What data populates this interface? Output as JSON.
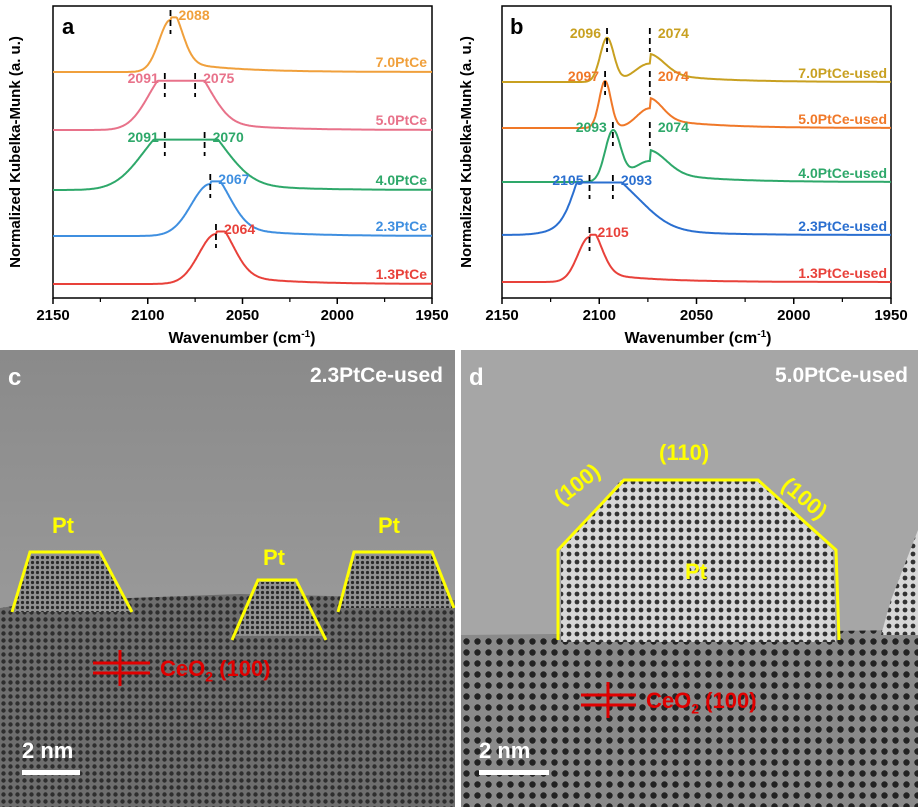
{
  "panels": {
    "a": {
      "letter": "a",
      "xlabel": "Wavenumber (cm",
      "xlabel_sup": "-1",
      "xlabel_end": ")",
      "ylabel": "Normalized Kubelka-Munk (a. u.)",
      "xticks": [
        "2150",
        "2100",
        "2050",
        "2000",
        "1950"
      ]
    },
    "b": {
      "letter": "b",
      "xlabel": "Wavenumber (cm",
      "xlabel_sup": "-1",
      "xlabel_end": ")",
      "ylabel": "Normalized Kubelka-Munk (a. u.)",
      "xticks": [
        "2150",
        "2100",
        "2050",
        "2000",
        "1950"
      ]
    },
    "c": {
      "letter": "c",
      "title": "2.3PtCe-used",
      "pt_labels": [
        "Pt",
        "Pt",
        "Pt"
      ],
      "ceo2_main": "CeO",
      "ceo2_sub": "2",
      "ceo2_facet": " (100)",
      "scale": "2 nm"
    },
    "d": {
      "letter": "d",
      "title": "5.0PtCe-used",
      "facet_top": "(110)",
      "facet_left": "(100)",
      "facet_right": "(100)",
      "pt_label": "Pt",
      "ceo2_main": "CeO",
      "ceo2_sub": "2",
      "ceo2_facet": " (100)",
      "scale": "2 nm"
    }
  },
  "chart_data": [
    {
      "type": "line",
      "panel": "a",
      "xlabel": "Wavenumber (cm-1)",
      "ylabel": "Normalized Kubelka-Munk (a. u.)",
      "xlim": [
        2150,
        1950
      ],
      "xticks": [
        2150,
        2100,
        2050,
        2000,
        1950
      ],
      "series": [
        {
          "name": "7.0PtCe",
          "color": "#f0a03c",
          "peaks": [
            2088
          ]
        },
        {
          "name": "5.0PtCe",
          "color": "#e8728a",
          "peaks": [
            2091,
            2075
          ]
        },
        {
          "name": "4.0PtCe",
          "color": "#2ea86a",
          "peaks": [
            2091,
            2070
          ]
        },
        {
          "name": "2.3PtCe",
          "color": "#3f8fe0",
          "peaks": [
            2067
          ]
        },
        {
          "name": "1.3PtCe",
          "color": "#e8413a",
          "peaks": [
            2064
          ]
        }
      ]
    },
    {
      "type": "line",
      "panel": "b",
      "xlabel": "Wavenumber (cm-1)",
      "ylabel": "Normalized Kubelka-Munk (a. u.)",
      "xlim": [
        2150,
        1950
      ],
      "xticks": [
        2150,
        2100,
        2050,
        2000,
        1950
      ],
      "series": [
        {
          "name": "7.0PtCe-used",
          "color": "#c8a020",
          "peaks": [
            2096,
            2074
          ]
        },
        {
          "name": "5.0PtCe-used",
          "color": "#f07828",
          "peaks": [
            2097,
            2074
          ]
        },
        {
          "name": "4.0PtCe-used",
          "color": "#2ea86a",
          "peaks": [
            2093,
            2074
          ]
        },
        {
          "name": "2.3PtCe-used",
          "color": "#2a6fd0",
          "peaks": [
            2105,
            2093
          ]
        },
        {
          "name": "1.3PtCe-used",
          "color": "#e8413a",
          "peaks": [
            2105
          ]
        }
      ]
    }
  ]
}
